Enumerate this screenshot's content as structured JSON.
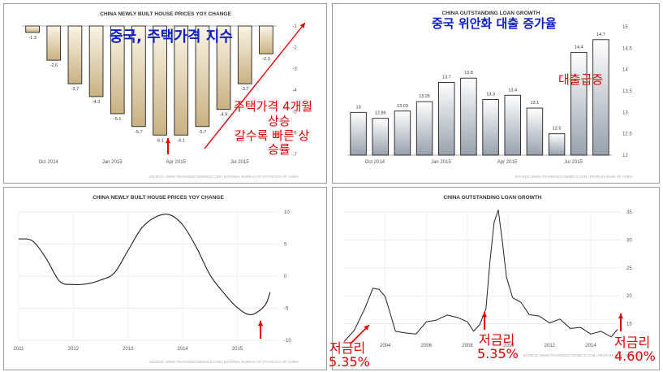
{
  "colors": {
    "annotation_red": "#e00000",
    "annotation_blue": "#1020c8",
    "axis_text": "#555555",
    "bar_gold_top": "#fbf5e6",
    "bar_gold_bottom": "#c9b182",
    "bar_gray_top": "#ffffff",
    "bar_gray_bottom": "#97a1ad",
    "bar_outline": "#222222",
    "line": "#222222"
  },
  "annotations": {
    "house_title_kr": "중국, 주택가격 지수",
    "house_note_kr": [
      "주택가격 4개월",
      "상승",
      "갈수록 빠른 상",
      "승률"
    ],
    "loan_title_kr": "중국 위안화 대출 증가율",
    "loan_note_kr": "대출급증",
    "rate_1": [
      "저금리",
      "5.35%"
    ],
    "rate_2": [
      "저금리",
      "5.35%"
    ],
    "rate_3": [
      "저금리",
      "4.60%"
    ]
  },
  "chart_data": [
    {
      "type": "bar",
      "title": "CHINA NEWLY BUILT HOUSE PRICES YOY CHANGE",
      "x_ticks": [
        "Oct 2014",
        "Jan 2015",
        "Apr 2015",
        "Jul 2015"
      ],
      "values": [
        -1.3,
        -2.6,
        -3.7,
        -4.3,
        -5.1,
        -5.7,
        -6.1,
        -6.1,
        -5.7,
        -4.9,
        -3.7,
        -2.3
      ],
      "data_labels": [
        "-1.3",
        "-2.6",
        "-3.7",
        "-4.3",
        "-5.1",
        "-5.7",
        "-6.1",
        "-6.1",
        "-5.7",
        "-4.9",
        "-3.7",
        "-2.3"
      ],
      "ylim": [
        -7,
        -1
      ],
      "y_ticks": [
        "-1",
        "-2",
        "-3",
        "-4",
        "-5",
        "-6",
        "-7"
      ],
      "source": "SOURCE: WWW.TRADINGECONOMICS.COM | NATIONAL BUREAU OF STATISTICS OF CHINA"
    },
    {
      "type": "line",
      "title": "CHINA NEWLY BUILT HOUSE PRICES YOY CHANGE",
      "x": [
        2011.0,
        2011.25,
        2011.5,
        2011.75,
        2012.0,
        2012.25,
        2012.5,
        2012.75,
        2013.0,
        2013.25,
        2013.5,
        2013.75,
        2014.0,
        2014.25,
        2014.5,
        2014.75,
        2015.0,
        2015.25,
        2015.5,
        2015.6
      ],
      "y": [
        5.8,
        5.5,
        2.8,
        -0.8,
        -1.3,
        -1.2,
        -0.6,
        0.5,
        4.0,
        7.5,
        9.2,
        9.6,
        8.0,
        4.5,
        0.2,
        -2.6,
        -4.9,
        -6.0,
        -4.6,
        -2.5
      ],
      "x_ticks": [
        "2011",
        "2012",
        "2013",
        "2014",
        "2015"
      ],
      "ylim": [
        -10,
        10
      ],
      "y_ticks": [
        "10",
        "5",
        "0",
        "-5",
        "-10"
      ],
      "source": "SOURCE: WWW.TRADINGECONOMICS.COM | NATIONAL BUREAU OF STATISTICS OF CHINA"
    },
    {
      "type": "bar",
      "title": "CHINA OUTSTANDING LOAN GROWTH",
      "x_ticks": [
        "Oct 2014",
        "Jan 2015",
        "Apr 2015",
        "Jul 2015"
      ],
      "values": [
        13,
        12.86,
        13.03,
        13.25,
        13.7,
        13.8,
        13.3,
        13.4,
        13.1,
        12.5,
        14.4,
        14.7
      ],
      "data_labels": [
        "13",
        "12.86",
        "13.03",
        "13.25",
        "13.7",
        "13.8",
        "13.3",
        "13.4",
        "13.1",
        "12.5",
        "14.4",
        "14.7"
      ],
      "ylim": [
        12,
        15
      ],
      "y_ticks": [
        "15",
        "14.5",
        "14",
        "13.5",
        "13",
        "12.5",
        "12"
      ],
      "source": "SOURCE: WWW.TRADINGECONOMICS.COM | PEOPLES BANK OF CHINA"
    },
    {
      "type": "line",
      "title": "CHINA OUTSTANDING LOAN GROWTH",
      "x": [
        2002.0,
        2002.5,
        2003.0,
        2003.4,
        2003.7,
        2004.0,
        2004.5,
        2005.0,
        2005.5,
        2006.0,
        2006.5,
        2007.0,
        2007.5,
        2008.0,
        2008.3,
        2008.6,
        2008.9,
        2009.1,
        2009.3,
        2009.5,
        2009.7,
        2009.9,
        2010.2,
        2010.6,
        2011.0,
        2011.5,
        2012.0,
        2012.5,
        2013.0,
        2013.5,
        2014.0,
        2014.5,
        2015.0,
        2015.3
      ],
      "y": [
        11.8,
        13.5,
        18.0,
        21.0,
        21.5,
        19.5,
        14.0,
        13.0,
        13.5,
        15.0,
        16.0,
        16.2,
        16.5,
        15.0,
        14.0,
        14.5,
        18.0,
        26.0,
        33.5,
        35.0,
        30.0,
        23.0,
        20.0,
        18.5,
        17.0,
        16.0,
        15.5,
        15.5,
        14.5,
        14.0,
        13.5,
        13.3,
        13.0,
        14.0
      ],
      "x_ticks": [
        "2004",
        "2006",
        "2008",
        "2010",
        "2012",
        "2014"
      ],
      "ylim": [
        10,
        35
      ],
      "y_ticks": [
        "35",
        "30",
        "25",
        "20",
        "15"
      ],
      "source": "SOURCE: WWW.TRADINGECONOMICS.COM | PEOPLES BANK OF CHINA"
    }
  ]
}
